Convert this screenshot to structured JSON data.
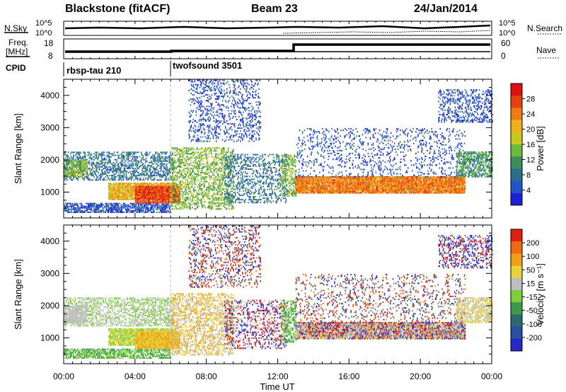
{
  "header": {
    "title": "Blackstone (fitACF)",
    "beam": "Beam 23",
    "date": "24/Jan/2014"
  },
  "top_panel": {
    "left_label": "N.Sky",
    "right_label": "N.Search",
    "tick_high": "10^5",
    "tick_low": "10^0"
  },
  "freq_panel": {
    "label_line1": "Freq.",
    "label_line2": "[MHz]",
    "left_ticks": [
      "18",
      "8"
    ],
    "right_ticks": [
      "60",
      "0"
    ],
    "right_label": "Nave"
  },
  "cpid": {
    "label": "CPID",
    "segments": [
      {
        "name": "rbsp-tau 210",
        "start_hour": 0
      },
      {
        "name": "twofsound 3501",
        "start_hour": 6
      }
    ]
  },
  "chart_data": [
    {
      "type": "heatmap",
      "quantity": "Power",
      "ylabel": "Slant Range [km]",
      "ylim": [
        200,
        4500
      ],
      "yticks": [
        1000,
        2000,
        3000,
        4000
      ],
      "xlim": [
        0,
        24
      ],
      "colorbar": {
        "label": "Power [dB]",
        "ticks": [
          "4",
          "8",
          "12",
          "16",
          "20",
          "24",
          "28"
        ],
        "range": [
          0,
          32
        ],
        "colors": [
          "#1f1fd8",
          "#2355c8",
          "#2b6f8f",
          "#3d8d5a",
          "#6dbb3a",
          "#c8c81e",
          "#f0b018",
          "#ee7a14",
          "#e84010",
          "#e01010"
        ]
      }
    },
    {
      "type": "heatmap",
      "quantity": "Velocity",
      "ylabel": "Slant Range [km]",
      "ylim": [
        200,
        4500
      ],
      "yticks": [
        1000,
        2000,
        3000,
        4000
      ],
      "xlim": [
        0,
        24
      ],
      "colorbar": {
        "label": "Velocity [m s⁻¹]",
        "ticks": [
          "200",
          "100",
          "50",
          "15",
          "-15",
          "-50",
          "-100",
          "-200"
        ],
        "colors": [
          "#2828c8",
          "#2a4ea0",
          "#2a6a70",
          "#3a9a4a",
          "#7ccf3a",
          "#bebebe",
          "#e8d23a",
          "#f0a018",
          "#ec6a10",
          "#e02010"
        ]
      }
    }
  ],
  "time_axis": {
    "label": "Time UT",
    "ticks": [
      "00:00",
      "04:00",
      "08:00",
      "12:00",
      "16:00",
      "20:00",
      "00:00"
    ]
  }
}
